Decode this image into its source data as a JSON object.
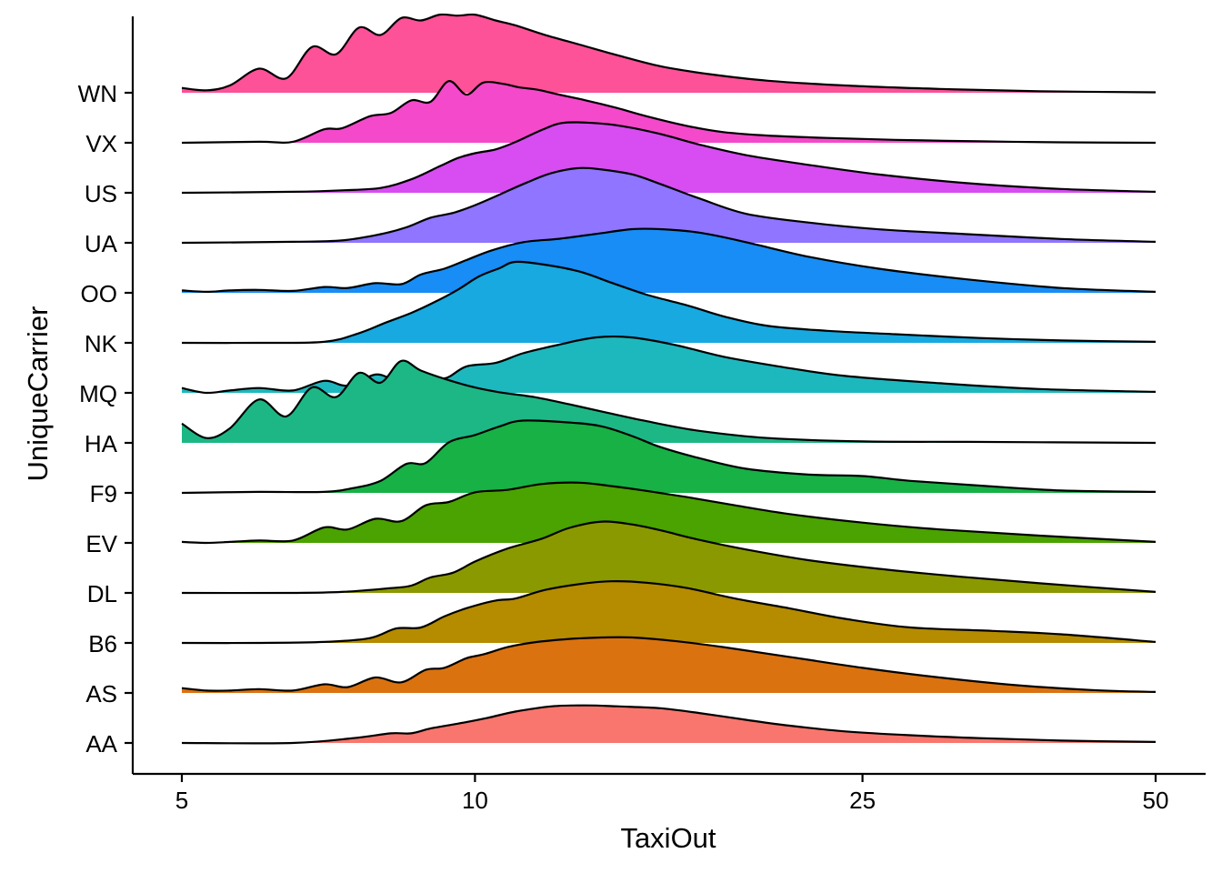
{
  "chart_data": {
    "type": "ridgeline",
    "title": "",
    "xlabel": "TaxiOut",
    "ylabel": "UniqueCarrier",
    "x_scale": "log10",
    "xlim": [
      5,
      50
    ],
    "x_ticks": [
      5,
      10,
      25,
      50
    ],
    "x_tick_labels": [
      "5",
      "10",
      "25",
      "50"
    ],
    "categories": [
      "AA",
      "AS",
      "B6",
      "DL",
      "EV",
      "F9",
      "HA",
      "MQ",
      "NK",
      "OO",
      "UA",
      "US",
      "VX",
      "WN"
    ],
    "grid": false,
    "legend": "none",
    "series": [
      {
        "name": "AA",
        "color": "#F8766D",
        "x": [
          5,
          6.5,
          7.5,
          8.2,
          8.6,
          9.0,
          9.6,
          10.3,
          11.0,
          12.0,
          13.0,
          14.0,
          15.5,
          17.0,
          19.0,
          21.0,
          24.0,
          28.0,
          33.0,
          40.0,
          50.0
        ],
        "h": [
          0,
          0,
          0.1,
          0.2,
          0.2,
          0.3,
          0.4,
          0.52,
          0.65,
          0.76,
          0.78,
          0.76,
          0.72,
          0.62,
          0.48,
          0.36,
          0.24,
          0.16,
          0.1,
          0.05,
          0.02
        ]
      },
      {
        "name": "AS",
        "color": "#DB7210",
        "x": [
          5,
          5.3,
          5.6,
          6.0,
          6.5,
          7.0,
          7.4,
          7.9,
          8.4,
          8.9,
          9.3,
          9.8,
          10.2,
          10.8,
          11.5,
          12.5,
          13.5,
          14.5,
          16.0,
          18.0,
          21.0,
          25.0,
          30.0,
          36.0,
          43.0,
          50.0
        ],
        "h": [
          0.1,
          0.05,
          0.05,
          0.08,
          0.05,
          0.18,
          0.12,
          0.32,
          0.22,
          0.48,
          0.52,
          0.72,
          0.8,
          0.95,
          1.05,
          1.12,
          1.15,
          1.15,
          1.08,
          0.95,
          0.75,
          0.52,
          0.32,
          0.16,
          0.06,
          0.02
        ]
      },
      {
        "name": "B6",
        "color": "#B58B00",
        "x": [
          5,
          6.0,
          7.0,
          7.8,
          8.3,
          8.8,
          9.3,
          9.8,
          10.5,
          11.0,
          11.8,
          12.8,
          13.8,
          15.0,
          16.5,
          18.5,
          21.0,
          24.0,
          28.0,
          34.0,
          40.0,
          50.0
        ],
        "h": [
          0,
          0,
          0.02,
          0.1,
          0.3,
          0.32,
          0.55,
          0.72,
          0.88,
          0.92,
          1.1,
          1.22,
          1.28,
          1.25,
          1.14,
          0.92,
          0.72,
          0.5,
          0.32,
          0.25,
          0.18,
          0.02
        ]
      },
      {
        "name": "DL",
        "color": "#8B9900",
        "x": [
          5,
          6.5,
          7.3,
          8.2,
          8.6,
          9.0,
          9.5,
          10.0,
          10.8,
          11.7,
          12.5,
          13.5,
          14.5,
          15.5,
          17.0,
          19.0,
          22.0,
          26.0,
          31.0,
          38.0,
          50.0
        ],
        "h": [
          0,
          0,
          0.02,
          0.1,
          0.15,
          0.32,
          0.42,
          0.65,
          0.92,
          1.12,
          1.35,
          1.48,
          1.42,
          1.3,
          1.1,
          0.9,
          0.68,
          0.5,
          0.35,
          0.2,
          0.02
        ]
      },
      {
        "name": "EV",
        "color": "#4AA300",
        "x": [
          5,
          5.3,
          5.6,
          6.0,
          6.5,
          7.0,
          7.4,
          7.9,
          8.4,
          8.9,
          9.4,
          10.0,
          10.8,
          11.7,
          12.8,
          13.8,
          15.0,
          16.5,
          18.5,
          21.0,
          25.0,
          30.0,
          38.0,
          50.0
        ],
        "h": [
          0.02,
          0.0,
          0.02,
          0.05,
          0.05,
          0.32,
          0.28,
          0.5,
          0.45,
          0.78,
          0.85,
          1.05,
          1.1,
          1.22,
          1.25,
          1.18,
          1.08,
          0.95,
          0.78,
          0.6,
          0.42,
          0.28,
          0.15,
          0.02
        ]
      },
      {
        "name": "F9",
        "color": "#17B145",
        "x": [
          5,
          6.0,
          7.0,
          7.5,
          8.0,
          8.5,
          8.9,
          9.4,
          10.0,
          10.6,
          11.2,
          12.5,
          13.5,
          14.5,
          15.5,
          17.0,
          19.0,
          22.0,
          25.0,
          28.0,
          33.0,
          40.0,
          50.0
        ],
        "h": [
          0,
          0.02,
          0.02,
          0.1,
          0.25,
          0.6,
          0.62,
          1.05,
          1.2,
          1.38,
          1.5,
          1.46,
          1.38,
          1.18,
          0.95,
          0.72,
          0.5,
          0.38,
          0.35,
          0.25,
          0.15,
          0.05,
          0.02
        ]
      },
      {
        "name": "HA",
        "color": "#1DB786",
        "x": [
          5,
          5.3,
          5.6,
          6.0,
          6.4,
          6.8,
          7.2,
          7.6,
          8.0,
          8.4,
          8.8,
          9.4,
          10.0,
          10.6,
          11.5,
          12.5,
          13.5,
          15.0,
          17.0,
          20.0,
          25.0,
          32.0,
          50.0
        ],
        "h": [
          0.4,
          0.1,
          0.3,
          0.9,
          0.55,
          1.15,
          0.95,
          1.45,
          1.25,
          1.7,
          1.5,
          1.3,
          1.15,
          1.05,
          0.95,
          0.8,
          0.65,
          0.45,
          0.25,
          0.1,
          0.03,
          0.02,
          0.0
        ]
      },
      {
        "name": "MQ",
        "color": "#1DB8BE",
        "x": [
          5,
          5.3,
          5.6,
          6.0,
          6.5,
          7.0,
          7.4,
          7.9,
          8.3,
          8.8,
          9.3,
          9.8,
          10.5,
          11.2,
          12.2,
          13.3,
          14.5,
          16.0,
          18.0,
          20.5,
          24.0,
          30.0,
          38.0,
          50.0
        ],
        "h": [
          0.1,
          0.0,
          0.05,
          0.1,
          0.05,
          0.25,
          0.15,
          0.38,
          0.28,
          0.42,
          0.3,
          0.55,
          0.62,
          0.82,
          1.0,
          1.15,
          1.15,
          1.0,
          0.75,
          0.55,
          0.35,
          0.2,
          0.08,
          0.02
        ]
      },
      {
        "name": "NK",
        "color": "#17A9E0",
        "x": [
          5,
          6.0,
          7.0,
          7.6,
          8.1,
          8.6,
          9.1,
          9.6,
          10.1,
          10.6,
          11.0,
          11.8,
          12.8,
          13.8,
          15.0,
          16.5,
          18.0,
          20.0,
          23.0,
          27.0,
          33.0,
          40.0,
          50.0
        ],
        "h": [
          0,
          0,
          0.02,
          0.2,
          0.42,
          0.62,
          0.85,
          1.1,
          1.38,
          1.55,
          1.68,
          1.62,
          1.48,
          1.25,
          1.0,
          0.78,
          0.55,
          0.35,
          0.25,
          0.18,
          0.1,
          0.05,
          0.02
        ]
      },
      {
        "name": "OO",
        "color": "#178DF5",
        "x": [
          5,
          5.3,
          5.6,
          6.0,
          6.5,
          7.0,
          7.4,
          7.9,
          8.4,
          8.8,
          9.3,
          9.8,
          10.4,
          11.2,
          12.2,
          13.3,
          14.5,
          15.5,
          17.0,
          19.0,
          22.0,
          26.0,
          32.0,
          40.0,
          50.0
        ],
        "h": [
          0.05,
          0.02,
          0.05,
          0.06,
          0.04,
          0.12,
          0.1,
          0.2,
          0.18,
          0.38,
          0.5,
          0.68,
          0.88,
          1.05,
          1.12,
          1.22,
          1.32,
          1.32,
          1.25,
          1.05,
          0.75,
          0.5,
          0.28,
          0.1,
          0.02
        ]
      },
      {
        "name": "UA",
        "color": "#8F75FF",
        "x": [
          5,
          6.5,
          7.3,
          8.0,
          8.5,
          9.0,
          9.5,
          10.0,
          10.6,
          11.3,
          12.0,
          12.8,
          13.5,
          14.5,
          15.5,
          17.0,
          19.0,
          22.0,
          26.0,
          32.0,
          40.0,
          50.0
        ],
        "h": [
          0,
          0.02,
          0.05,
          0.18,
          0.32,
          0.52,
          0.62,
          0.78,
          1.0,
          1.25,
          1.45,
          1.55,
          1.52,
          1.42,
          1.22,
          0.92,
          0.6,
          0.42,
          0.28,
          0.18,
          0.08,
          0.02
        ]
      },
      {
        "name": "US",
        "color": "#D74DF2",
        "x": [
          5,
          6.5,
          7.3,
          8.0,
          8.6,
          9.2,
          9.6,
          10.0,
          10.5,
          11.0,
          11.7,
          12.3,
          13.2,
          14.2,
          15.5,
          17.0,
          19.0,
          22.0,
          26.0,
          32.0,
          40.0,
          50.0
        ],
        "h": [
          0,
          0.02,
          0.05,
          0.1,
          0.28,
          0.55,
          0.72,
          0.82,
          0.9,
          1.05,
          1.3,
          1.45,
          1.45,
          1.38,
          1.22,
          1.0,
          0.78,
          0.58,
          0.38,
          0.2,
          0.08,
          0.02
        ]
      },
      {
        "name": "VX",
        "color": "#F449CB",
        "x": [
          5,
          6.0,
          6.5,
          7.0,
          7.3,
          7.8,
          8.2,
          8.6,
          9.0,
          9.4,
          9.8,
          10.2,
          10.7,
          11.1,
          11.6,
          12.2,
          13.0,
          14.0,
          15.0,
          16.5,
          18.0,
          20.0,
          23.0,
          27.0,
          33.0,
          40.0,
          50.0
        ],
        "h": [
          0,
          0.02,
          0.02,
          0.28,
          0.3,
          0.55,
          0.62,
          0.88,
          0.85,
          1.28,
          1.0,
          1.25,
          1.22,
          1.15,
          1.1,
          1.0,
          0.88,
          0.72,
          0.55,
          0.35,
          0.22,
          0.15,
          0.1,
          0.06,
          0.03,
          0.01,
          0.0
        ]
      },
      {
        "name": "WN",
        "color": "#FD5198",
        "x": [
          5,
          5.3,
          5.6,
          6.0,
          6.4,
          6.8,
          7.2,
          7.6,
          8.0,
          8.4,
          8.8,
          9.2,
          9.6,
          10.0,
          10.5,
          11.0,
          11.8,
          12.8,
          14.0,
          15.5,
          17.5,
          20.0,
          24.0,
          30.0,
          38.0,
          50.0
        ],
        "h": [
          0.1,
          0.05,
          0.15,
          0.5,
          0.3,
          0.95,
          0.8,
          1.35,
          1.2,
          1.55,
          1.5,
          1.62,
          1.6,
          1.62,
          1.5,
          1.4,
          1.2,
          1.0,
          0.78,
          0.55,
          0.38,
          0.25,
          0.15,
          0.08,
          0.03,
          0.01
        ]
      }
    ]
  }
}
